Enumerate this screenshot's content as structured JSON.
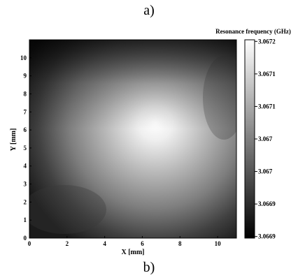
{
  "panel_labels": {
    "top": "a)",
    "bottom": "b)"
  },
  "chart_data": {
    "type": "heatmap",
    "xlabel": "X [mm]",
    "ylabel": "Y [mm]",
    "xlim": [
      0,
      11
    ],
    "ylim": [
      0,
      11
    ],
    "xticks": [
      0,
      2,
      4,
      6,
      8,
      10
    ],
    "yticks": [
      0,
      1,
      2,
      3,
      4,
      5,
      6,
      7,
      8,
      9,
      10
    ],
    "colorbar": {
      "title": "Resonance frequency (GHz)",
      "tick_labels": [
        "3.0672",
        "3.0671",
        "3.0671",
        "3.067",
        "3.067",
        "3.0669",
        "3.0669"
      ],
      "colormap": "gray",
      "range": [
        3.0669,
        3.0672
      ]
    },
    "peak": {
      "x": 6.8,
      "y": 6.2,
      "value": 3.0672
    },
    "approx_values": [
      {
        "x": 1,
        "y": 10,
        "value": 3.0669
      },
      {
        "x": 6.8,
        "y": 6.2,
        "value": 3.0672
      },
      {
        "x": 1,
        "y": 1,
        "value": 3.06695
      },
      {
        "x": 10,
        "y": 1,
        "value": 3.06697
      }
    ]
  }
}
